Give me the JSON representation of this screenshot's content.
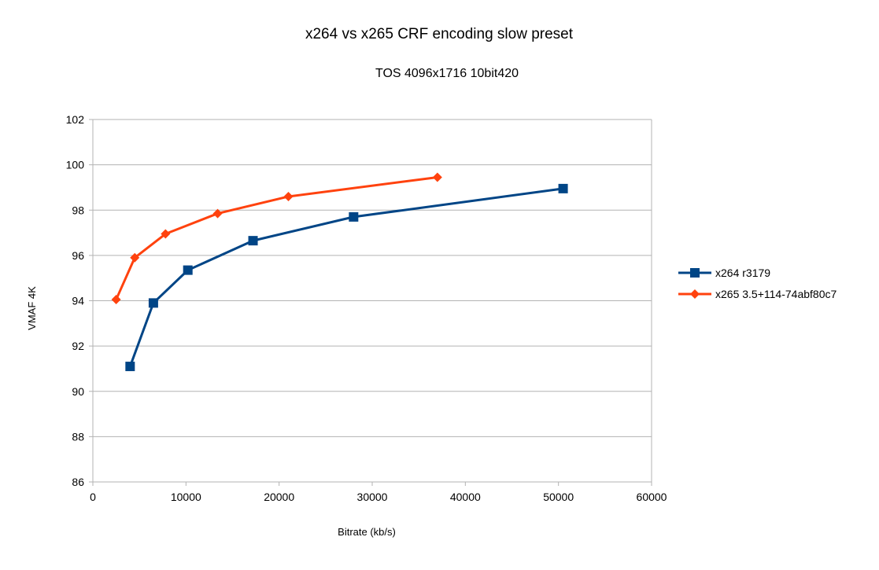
{
  "chart_data": {
    "type": "line",
    "title": "x264 vs x265 CRF encoding slow preset",
    "subtitle": "TOS 4096x1716 10bit420",
    "xlabel": "Bitrate (kb/s)",
    "ylabel": "VMAF 4K",
    "xlim": [
      0,
      60000
    ],
    "ylim": [
      86,
      102
    ],
    "xticks": [
      0,
      10000,
      20000,
      30000,
      40000,
      50000,
      60000
    ],
    "yticks": [
      86,
      88,
      90,
      92,
      94,
      96,
      98,
      100,
      102
    ],
    "xtick_labels": [
      "0",
      "10000",
      "20000",
      "30000",
      "40000",
      "50000",
      "60000"
    ],
    "ytick_labels": [
      "86",
      "88",
      "90",
      "92",
      "94",
      "96",
      "98",
      "100",
      "102"
    ],
    "grid": "horizontal",
    "legend_position": "right",
    "series": [
      {
        "name": "x264 r3179",
        "color": "#004586",
        "marker": "square",
        "x": [
          4000,
          6500,
          10200,
          17200,
          28000,
          50500
        ],
        "y": [
          91.1,
          93.9,
          95.35,
          96.65,
          97.7,
          98.95
        ]
      },
      {
        "name": "x265 3.5+114-74abf80c7",
        "color": "#ff420e",
        "marker": "diamond",
        "x": [
          2500,
          4500,
          7800,
          13400,
          21000,
          37000
        ],
        "y": [
          94.05,
          95.9,
          96.95,
          97.85,
          98.6,
          99.45
        ]
      }
    ]
  }
}
